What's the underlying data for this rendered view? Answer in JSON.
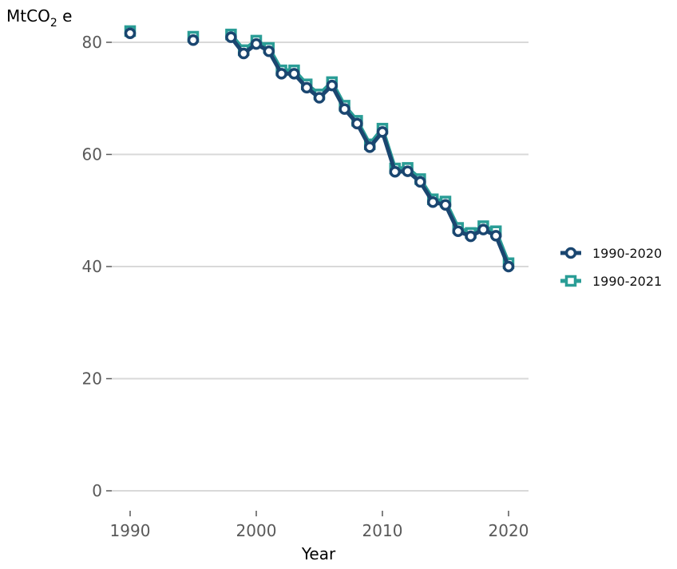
{
  "chart_data": {
    "type": "line",
    "ylabel_main": "MtCO",
    "ylabel_sub": "2",
    "ylabel_tail": " e",
    "xlabel": "Year",
    "xlim": [
      1990,
      2020
    ],
    "ylim": [
      0,
      82
    ],
    "xticks": [
      1990,
      2000,
      2010,
      2020
    ],
    "yticks": [
      0,
      20,
      40,
      60,
      80
    ],
    "grid": "horizontal",
    "legend_position": "right",
    "series": [
      {
        "name": "1990-2020",
        "color": "#1a4670",
        "marker": "circle",
        "points": [
          [
            1990,
            81.6
          ],
          [
            1995,
            80.4
          ],
          [
            1998,
            80.9
          ],
          [
            1999,
            78.0
          ],
          [
            2000,
            79.7
          ],
          [
            2001,
            78.4
          ],
          [
            2002,
            74.4
          ],
          [
            2003,
            74.4
          ],
          [
            2004,
            71.9
          ],
          [
            2005,
            70.1
          ],
          [
            2006,
            72.3
          ],
          [
            2007,
            68.1
          ],
          [
            2008,
            65.5
          ],
          [
            2009,
            61.3
          ],
          [
            2010,
            64.0
          ],
          [
            2011,
            56.9
          ],
          [
            2012,
            57.0
          ],
          [
            2013,
            55.1
          ],
          [
            2014,
            51.5
          ],
          [
            2015,
            51.0
          ],
          [
            2016,
            46.3
          ],
          [
            2017,
            45.4
          ],
          [
            2018,
            46.6
          ],
          [
            2019,
            45.5
          ],
          [
            2020,
            40.0
          ]
        ]
      },
      {
        "name": "1990-2021",
        "color": "#2a9d96",
        "marker": "square",
        "points": [
          [
            1990,
            82.0
          ],
          [
            1995,
            81.0
          ],
          [
            1998,
            81.4
          ],
          [
            1999,
            78.6
          ],
          [
            2000,
            80.3
          ],
          [
            2001,
            79.0
          ],
          [
            2002,
            75.0
          ],
          [
            2003,
            75.0
          ],
          [
            2004,
            72.5
          ],
          [
            2005,
            70.7
          ],
          [
            2006,
            72.9
          ],
          [
            2007,
            68.7
          ],
          [
            2008,
            66.0
          ],
          [
            2009,
            61.8
          ],
          [
            2010,
            64.6
          ],
          [
            2011,
            57.5
          ],
          [
            2012,
            57.6
          ],
          [
            2013,
            55.6
          ],
          [
            2014,
            52.0
          ],
          [
            2015,
            51.6
          ],
          [
            2016,
            46.9
          ],
          [
            2017,
            46.0
          ],
          [
            2018,
            47.2
          ],
          [
            2019,
            46.3
          ],
          [
            2020,
            40.6
          ]
        ]
      }
    ]
  }
}
